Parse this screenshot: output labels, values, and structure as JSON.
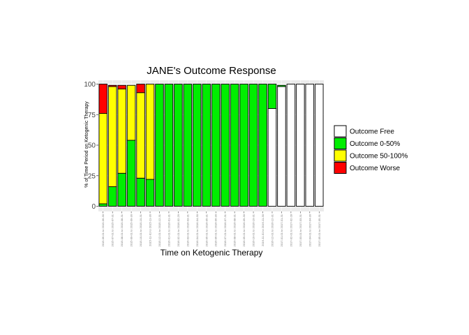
{
  "chart_data": {
    "type": "bar",
    "stacked": true,
    "title": "JANE's Outcome Response",
    "xlabel": "Time on Ketogenic Therapy",
    "ylabel": "% of Time Period on Ketogenic Therapy",
    "ylim": [
      0,
      100
    ],
    "yticks": [
      0,
      25,
      50,
      75,
      100
    ],
    "grid": true,
    "legend_position": "right",
    "categories": [
      "2015-06-01 to 2015-06-30",
      "2015-07-01 to 2015-07-31",
      "2015-08-01 to 2015-08-31",
      "2015-09-01 to 2015-09-30",
      "2015-10-01 to 2015-10-31",
      "2015-11-01 to 2015-11-30",
      "2015-12-01 to 2015-12-31",
      "2016-01-01 to 2016-01-31",
      "2016-02-01 to 2016-02-29",
      "2016-03-01 to 2016-03-31",
      "2016-04-01 to 2016-04-30",
      "2016-05-01 to 2016-05-31",
      "2016-06-01 to 2016-06-30",
      "2016-07-01 to 2016-07-31",
      "2016-08-01 to 2016-08-31",
      "2016-09-01 to 2016-09-30",
      "2016-10-01 to 2016-10-31",
      "2016-11-01 to 2016-11-30",
      "2016-12-01 to 2016-12-31",
      "2017-01-01 to 2017-01-31",
      "2017-02-01 to 2017-02-28",
      "2017-03-01 to 2017-03-31",
      "2017-04-01 to 2017-04-30",
      "2017-05-01 to 2017-05-31"
    ],
    "series": [
      {
        "name": "Outcome Free",
        "color": "#ffffff",
        "values": [
          0,
          0,
          0,
          0,
          0,
          0,
          0,
          0,
          0,
          0,
          0,
          0,
          0,
          0,
          0,
          0,
          0,
          0,
          80,
          98,
          100,
          100,
          100,
          100
        ]
      },
      {
        "name": "Outcome 0-50%",
        "color": "#00ee00",
        "values": [
          2,
          16,
          27,
          54,
          23,
          22,
          100,
          100,
          100,
          100,
          100,
          100,
          100,
          100,
          100,
          100,
          100,
          100,
          20,
          1,
          0,
          0,
          0,
          0
        ]
      },
      {
        "name": "Outcome 50-100%",
        "color": "#ffff00",
        "values": [
          74,
          82,
          69,
          45,
          70,
          78,
          0,
          0,
          0,
          0,
          0,
          0,
          0,
          0,
          0,
          0,
          0,
          0,
          0,
          0,
          0,
          0,
          0,
          0
        ]
      },
      {
        "name": "Outcome Worse",
        "color": "#ff0000",
        "values": [
          24,
          1,
          3,
          0,
          7,
          0,
          0,
          0,
          0,
          0,
          0,
          0,
          0,
          0,
          0,
          0,
          0,
          0,
          0,
          0,
          0,
          0,
          0,
          0
        ]
      }
    ],
    "legend_order": [
      "Outcome Free",
      "Outcome 0-50%",
      "Outcome 50-100%",
      "Outcome Worse"
    ]
  }
}
